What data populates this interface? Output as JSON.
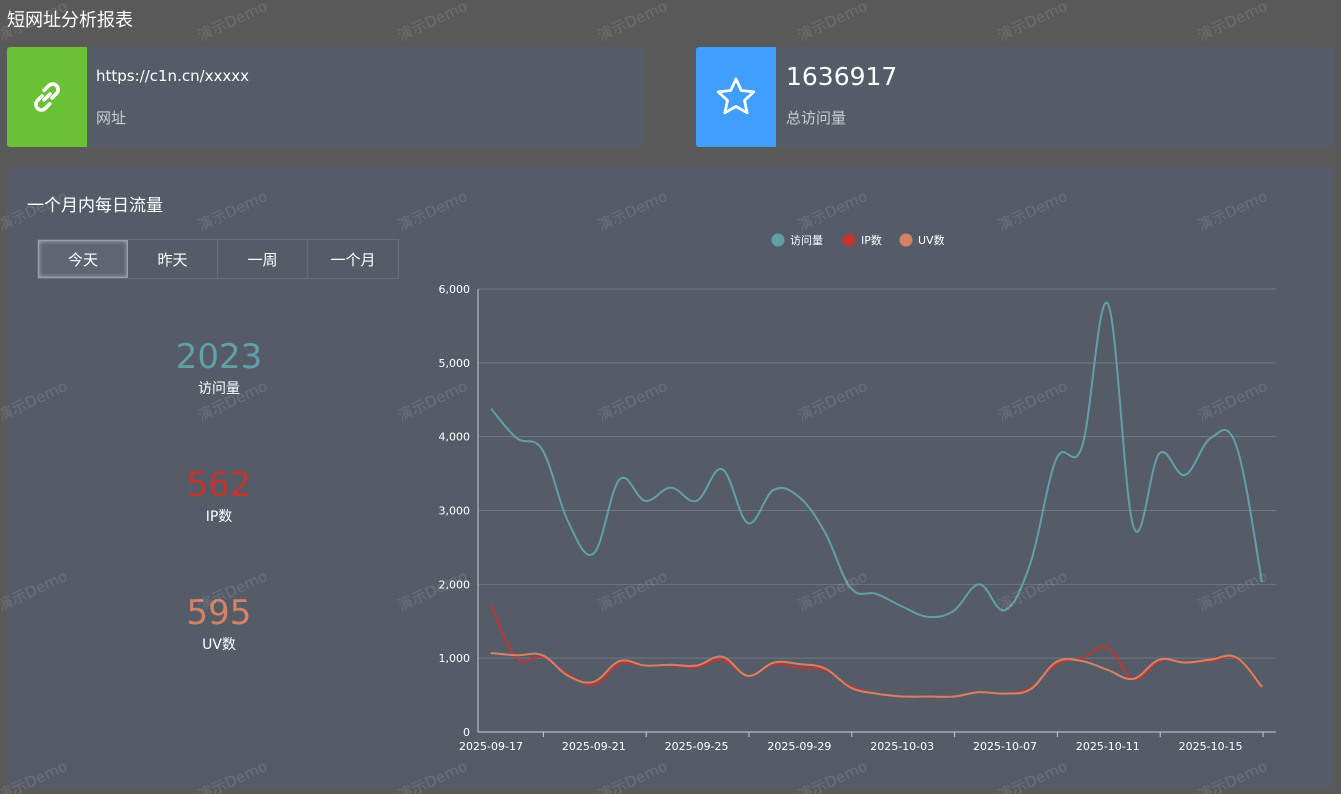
{
  "page": {
    "title": "短网址分析报表"
  },
  "cards": {
    "url": {
      "value": "https://c1n.cn/xxxxx",
      "label": "网址",
      "icon": "link-icon",
      "color": "#6bc135"
    },
    "visits": {
      "value": "1636917",
      "label": "总访问量",
      "icon": "star-icon",
      "color": "#409eff"
    }
  },
  "panel": {
    "title": "一个月内每日流量",
    "tabs": [
      {
        "label": "今天",
        "active": true
      },
      {
        "label": "昨天",
        "active": false
      },
      {
        "label": "一周",
        "active": false
      },
      {
        "label": "一个月",
        "active": false
      }
    ],
    "stats": [
      {
        "value": "2023",
        "label": "访问量",
        "color": "#61a0a8"
      },
      {
        "value": "562",
        "label": "IP数",
        "color": "#c23531"
      },
      {
        "value": "595",
        "label": "UV数",
        "color": "#d48265"
      }
    ]
  },
  "watermark": "演示Demo",
  "chart_data": {
    "type": "line",
    "smooth": true,
    "legend": "top-center",
    "grid": true,
    "ylim": [
      0,
      6000
    ],
    "yticks": [
      0,
      1000,
      2000,
      3000,
      4000,
      5000,
      6000
    ],
    "ytick_labels": [
      "0",
      "1,000",
      "2,000",
      "3,000",
      "4,000",
      "5,000",
      "6,000"
    ],
    "x": [
      "2025-09-17",
      "2025-09-18",
      "2025-09-19",
      "2025-09-20",
      "2025-09-21",
      "2025-09-22",
      "2025-09-23",
      "2025-09-24",
      "2025-09-25",
      "2025-09-26",
      "2025-09-27",
      "2025-09-28",
      "2025-09-29",
      "2025-09-30",
      "2025-10-01",
      "2025-10-02",
      "2025-10-03",
      "2025-10-04",
      "2025-10-05",
      "2025-10-06",
      "2025-10-07",
      "2025-10-08",
      "2025-10-09",
      "2025-10-10",
      "2025-10-11",
      "2025-10-12",
      "2025-10-13",
      "2025-10-14",
      "2025-10-15",
      "2025-10-16",
      "2025-10-17"
    ],
    "xtick_labels": [
      "2025-09-17",
      "2025-09-21",
      "2025-09-25",
      "2025-09-29",
      "2025-10-03",
      "2025-10-07",
      "2025-10-11",
      "2025-10-15"
    ],
    "series": [
      {
        "name": "访问量",
        "color": "#61a0a8",
        "values": [
          4380,
          3980,
          3820,
          2850,
          2420,
          3420,
          3130,
          3310,
          3130,
          3560,
          2830,
          3280,
          3180,
          2700,
          1950,
          1870,
          1700,
          1560,
          1640,
          2000,
          1650,
          2300,
          3700,
          3870,
          5800,
          2780,
          3770,
          3480,
          3980,
          3880,
          2030
        ]
      },
      {
        "name": "IP数",
        "color": "#c23531",
        "values": [
          1720,
          1000,
          1020,
          780,
          640,
          920,
          900,
          900,
          880,
          980,
          760,
          920,
          870,
          840,
          620,
          520,
          480,
          480,
          480,
          540,
          520,
          600,
          920,
          1000,
          1140,
          720,
          960,
          950,
          960,
          1000,
          600
        ]
      },
      {
        "name": "UV数",
        "color": "#d48265",
        "values": [
          1070,
          1040,
          1040,
          760,
          680,
          960,
          900,
          910,
          900,
          1020,
          760,
          940,
          920,
          860,
          600,
          520,
          480,
          480,
          480,
          540,
          520,
          580,
          950,
          960,
          840,
          720,
          980,
          940,
          980,
          1010,
          610
        ]
      }
    ]
  }
}
